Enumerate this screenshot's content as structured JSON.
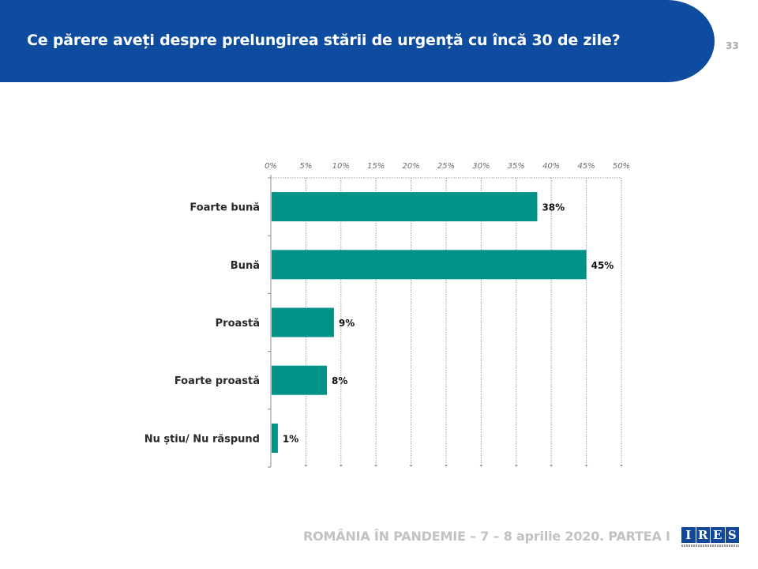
{
  "header": {
    "title": "Ce părere aveți despre prelungirea stării de urgență cu încă 30 de zile?",
    "page_number": "33"
  },
  "footer": {
    "text": "ROMÂNIA ÎN PANDEMIE – 7 – 8 aprilie 2020. PARTEA I",
    "logo_text": "IRES",
    "logo_letters": [
      "I",
      "R",
      "E",
      "S"
    ]
  },
  "colors": {
    "banner": "#0d4c9f",
    "bar": "#009288",
    "logo": "#12489a"
  },
  "chart_data": {
    "type": "bar",
    "orientation": "horizontal",
    "title": "",
    "xlabel": "",
    "ylabel": "",
    "categories": [
      "Foarte bună",
      "Bună",
      "Proastă",
      "Foarte proastă",
      "Nu știu/ Nu răspund"
    ],
    "values": [
      38,
      45,
      9,
      8,
      1
    ],
    "data_labels": [
      "38%",
      "45%",
      "9%",
      "8%",
      "1%"
    ],
    "xlim": [
      0,
      50
    ],
    "x_ticks": [
      0,
      5,
      10,
      15,
      20,
      25,
      30,
      35,
      40,
      45,
      50
    ],
    "x_tick_labels": [
      "0%",
      "5%",
      "10%",
      "15%",
      "20%",
      "25%",
      "30%",
      "35%",
      "40%",
      "45%",
      "50%"
    ],
    "x_axis_position": "top",
    "grid": true,
    "legend": "none"
  }
}
